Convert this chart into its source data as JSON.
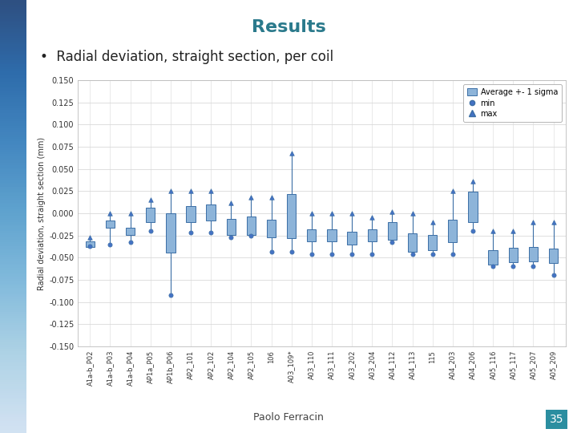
{
  "title": "Results",
  "subtitle": "•  Radial deviation, straight section, per coil",
  "ylabel": "Radial deviation, straight section (mm)",
  "footer": "Paolo Ferracin",
  "page_num": "35",
  "ylim": [
    -0.15,
    0.15
  ],
  "yticks": [
    -0.15,
    -0.125,
    -0.1,
    -0.075,
    -0.05,
    -0.025,
    0.0,
    0.025,
    0.05,
    0.075,
    0.1,
    0.125,
    0.15
  ],
  "categories": [
    "A1a-b_P02",
    "A1a-b_P03",
    "A1a-b_P04",
    "AP1a_P05",
    "AP1b_P06",
    "AP2_101",
    "AP2_102",
    "AP2_104",
    "AP2_105",
    "106",
    "A03_109*",
    "A03_110",
    "A03_111",
    "A03_202",
    "A03_204",
    "A04_112",
    "A04_113",
    "115",
    "A04_203",
    "A04_206",
    "A05_116",
    "A05_117",
    "A05_207",
    "A05_209"
  ],
  "avg": [
    -0.035,
    -0.012,
    -0.02,
    -0.002,
    -0.022,
    -0.001,
    0.001,
    -0.015,
    -0.014,
    -0.017,
    -0.003,
    -0.025,
    -0.025,
    -0.028,
    -0.025,
    -0.02,
    -0.033,
    -0.033,
    -0.02,
    0.007,
    -0.05,
    -0.047,
    -0.046,
    -0.048
  ],
  "sigma": [
    0.003,
    0.004,
    0.004,
    0.008,
    0.022,
    0.009,
    0.009,
    0.009,
    0.01,
    0.01,
    0.025,
    0.007,
    0.007,
    0.007,
    0.007,
    0.01,
    0.01,
    0.009,
    0.013,
    0.017,
    0.008,
    0.008,
    0.008,
    0.008
  ],
  "min_vals": [
    -0.037,
    -0.035,
    -0.033,
    -0.02,
    -0.092,
    -0.022,
    -0.022,
    -0.027,
    -0.025,
    -0.043,
    -0.043,
    -0.046,
    -0.046,
    -0.046,
    -0.046,
    -0.033,
    -0.046,
    -0.046,
    -0.046,
    -0.02,
    -0.06,
    -0.06,
    -0.06,
    -0.07
  ],
  "max_vals": [
    -0.027,
    0.0,
    0.0,
    0.015,
    0.025,
    0.025,
    0.025,
    0.012,
    0.018,
    0.018,
    0.068,
    0.0,
    0.0,
    0.0,
    -0.005,
    0.002,
    0.0,
    -0.01,
    0.025,
    0.036,
    -0.02,
    -0.02,
    -0.01,
    -0.01
  ],
  "title_color": "#2B7A8C",
  "bar_face_color": "#8DB4D9",
  "bar_edge_color": "#3B6EA5",
  "vert_line_color": "#3B6EA5",
  "marker_color": "#4472C4",
  "bg_color": "#FFFFFF",
  "grid_color": "#D9D9D9",
  "title_fontsize": 16,
  "subtitle_fontsize": 12,
  "ylabel_fontsize": 7,
  "tick_fontsize": 7,
  "xtick_fontsize": 6
}
